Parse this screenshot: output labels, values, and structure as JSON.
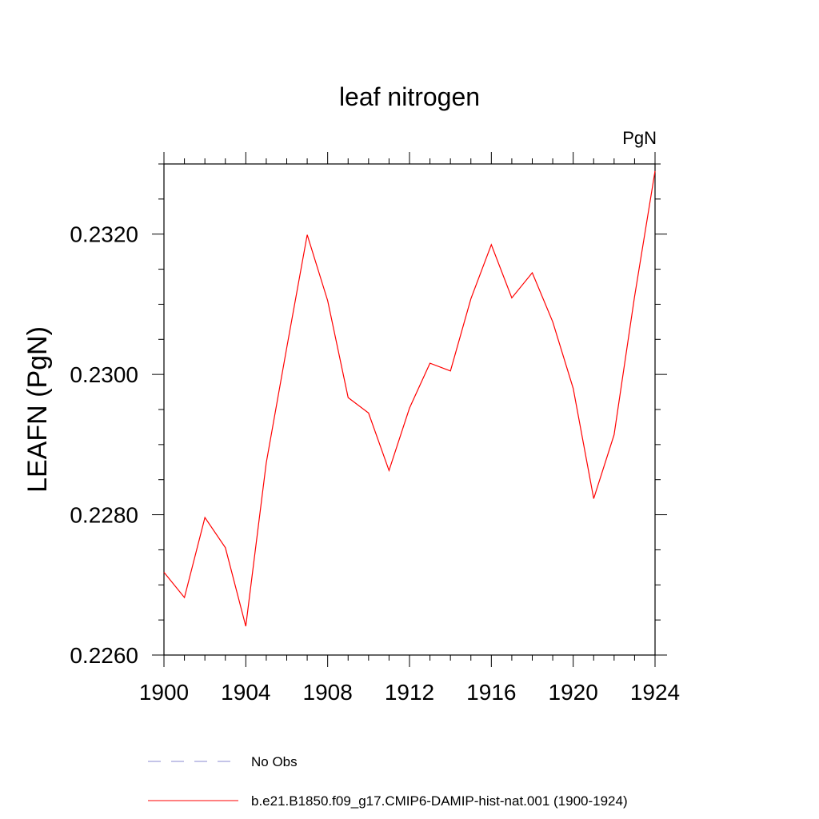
{
  "chart_data": {
    "type": "line",
    "title": "leaf nitrogen",
    "units_label": "PgN",
    "ylabel": "LEAFN  (PgN)",
    "xlabel": "",
    "xlim": [
      1900,
      1924
    ],
    "ylim": [
      0.226,
      0.233
    ],
    "x_ticks": [
      1900,
      1904,
      1908,
      1912,
      1916,
      1920,
      1924
    ],
    "x_tick_labels": [
      "1900",
      "1904",
      "1908",
      "1912",
      "1916",
      "1920",
      "1924"
    ],
    "y_ticks": [
      0.226,
      0.228,
      0.23,
      0.232
    ],
    "y_tick_labels": [
      "0.2260",
      "0.2280",
      "0.2300",
      "0.2320"
    ],
    "grid": false,
    "legend_position": "bottom",
    "series": [
      {
        "name": "b.e21.B1850.f09_g17.CMIP6-DAMIP-hist-nat.001 (1900-1924)",
        "color": "#ff0000",
        "style": "solid",
        "x": [
          1900,
          1901,
          1902,
          1903,
          1904,
          1905,
          1906,
          1907,
          1908,
          1909,
          1910,
          1911,
          1912,
          1913,
          1914,
          1915,
          1916,
          1917,
          1918,
          1919,
          1920,
          1921,
          1922,
          1923,
          1924
        ],
        "y": [
          0.22718,
          0.22682,
          0.22796,
          0.22753,
          0.22641,
          0.22874,
          0.23038,
          0.23199,
          0.23105,
          0.22967,
          0.22945,
          0.22863,
          0.22952,
          0.23016,
          0.23005,
          0.23108,
          0.23185,
          0.23109,
          0.23145,
          0.23075,
          0.2298,
          0.22823,
          0.22914,
          0.23111,
          0.2329
        ]
      }
    ],
    "legend": [
      {
        "label": "No Obs",
        "color": "#8a8ad0",
        "style": "dashed"
      },
      {
        "label": "b.e21.B1850.f09_g17.CMIP6-DAMIP-hist-nat.001 (1900-1924)",
        "color": "#ff0000",
        "style": "solid"
      }
    ]
  }
}
